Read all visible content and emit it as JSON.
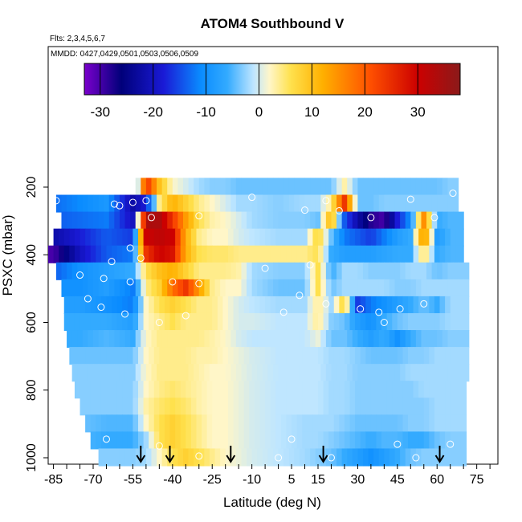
{
  "chart_data": {
    "type": "heatmap",
    "title": "ATOM4 Southbound V",
    "flights_note": "Flts: 2,3,4,5,6,7",
    "dates_note": "MMDD: 0427,0429,0501,0503,0506,0509",
    "xlabel": "Latitude (deg N)",
    "ylabel": "PSXC (mbar)",
    "xlim": [
      -87,
      83
    ],
    "ylim": [
      1000,
      0
    ],
    "x_ticks": [
      "-85",
      "-70",
      "-55",
      "-40",
      "-25",
      "-10",
      "5",
      "15",
      "30",
      "45",
      "60",
      "75"
    ],
    "x_tick_values": [
      -85,
      -70,
      -55,
      -40,
      -25,
      -10,
      5,
      15,
      30,
      45,
      60,
      75
    ],
    "y_ticks": [
      "200",
      "400",
      "600",
      "800",
      "1000"
    ],
    "y_tick_values": [
      200,
      400,
      600,
      800,
      1000
    ],
    "colorbar": {
      "ticks": [
        "-30",
        "-20",
        "-10",
        "0",
        "10",
        "20",
        "30"
      ],
      "tick_values": [
        -30,
        -20,
        -10,
        0,
        10,
        20,
        30
      ],
      "range": [
        -33,
        38
      ],
      "colors": [
        "#7a00cc",
        "#00007a",
        "#1a1ad6",
        "#0a8cff",
        "#33aaff",
        "#bfe6ff",
        "#fff6c8",
        "#ffe14d",
        "#ffb000",
        "#ff5000",
        "#cc0000",
        "#8b1a1a"
      ],
      "color_stops": [
        -33,
        -26,
        -18,
        -11,
        -6,
        -1,
        2,
        6,
        12,
        21,
        30,
        38
      ]
    },
    "arrow_latitudes": [
      -52,
      -41,
      -18,
      17,
      61
    ],
    "levels": [
      200,
      250,
      300,
      350,
      400,
      450,
      500,
      550,
      600,
      650,
      700,
      750,
      800,
      850,
      900,
      950,
      1000
    ],
    "latitude_nodes": [
      -85,
      -75,
      -65,
      -55,
      -50,
      -45,
      -40,
      -35,
      -30,
      -25,
      -20,
      -15,
      -10,
      0,
      10,
      15,
      20,
      25,
      30,
      35,
      40,
      45,
      50,
      55,
      60,
      65,
      72
    ],
    "rows": [
      {
        "p": 200,
        "lat_min": -54,
        "lat_max": 68,
        "v": [
          null,
          null,
          null,
          -16,
          25,
          10,
          2,
          0,
          -2,
          -3,
          -3,
          -4,
          -4,
          -4,
          -4,
          -4,
          -4,
          3,
          -4,
          -4,
          -4,
          -4,
          -4,
          -4,
          -4,
          -3,
          -3
        ]
      },
      {
        "p": 250,
        "lat_min": -84,
        "lat_max": 68,
        "v": [
          -13,
          -11,
          -9,
          -22,
          -18,
          4,
          12,
          8,
          4,
          2,
          0,
          -2,
          -2,
          -3,
          -2,
          -2,
          4,
          24,
          -4,
          -4,
          -3,
          -3,
          -3,
          -3,
          -3,
          -3,
          -3
        ]
      },
      {
        "p": 300,
        "lat_min": -82,
        "lat_max": 70,
        "v": [
          -14,
          -13,
          -12,
          -20,
          34,
          34,
          24,
          14,
          6,
          3,
          2,
          0,
          -2,
          -3,
          -3,
          -4,
          12,
          -14,
          -22,
          -28,
          -30,
          -18,
          -10,
          15,
          -6,
          -5,
          -5
        ]
      },
      {
        "p": 350,
        "lat_min": -85,
        "lat_max": 70,
        "v": [
          -22,
          -18,
          -14,
          -16,
          30,
          32,
          30,
          12,
          4,
          2,
          2,
          0,
          -1,
          -2,
          -2,
          8,
          -4,
          -12,
          -14,
          -16,
          -12,
          -8,
          -6,
          16,
          -8,
          -5,
          -5
        ]
      },
      {
        "p": 400,
        "lat_min": -87,
        "lat_max": 70,
        "v": [
          -30,
          -20,
          -14,
          -12,
          24,
          30,
          28,
          12,
          6,
          5,
          5,
          4,
          4,
          4,
          4,
          6,
          -6,
          -8,
          -8,
          -8,
          -7,
          -6,
          -6,
          6,
          -6,
          -5,
          -5
        ]
      },
      {
        "p": 450,
        "lat_min": -84,
        "lat_max": 72,
        "v": [
          -14,
          -10,
          -8,
          -6,
          6,
          10,
          12,
          8,
          4,
          4,
          4,
          3,
          -2,
          -3,
          -3,
          6,
          -6,
          -2,
          -2,
          -3,
          -3,
          -3,
          -2,
          -2,
          -4,
          -3,
          -3
        ]
      },
      {
        "p": 500,
        "lat_min": -82,
        "lat_max": 72,
        "v": [
          -10,
          -10,
          -8,
          -12,
          4,
          8,
          18,
          24,
          14,
          4,
          2,
          2,
          -2,
          -4,
          -4,
          6,
          -4,
          -2,
          -2,
          -2,
          -2,
          -3,
          -3,
          -2,
          -2,
          -2,
          -2
        ]
      },
      {
        "p": 550,
        "lat_min": -81,
        "lat_max": 72,
        "v": [
          -8,
          -8,
          -10,
          -12,
          2,
          6,
          8,
          6,
          4,
          4,
          2,
          0,
          -1,
          -2,
          -2,
          4,
          -2,
          8,
          -16,
          -12,
          -10,
          -8,
          -6,
          -4,
          -6,
          -2,
          -2
        ]
      },
      {
        "p": 600,
        "lat_min": -81,
        "lat_max": 72,
        "v": [
          -6,
          -6,
          -6,
          -8,
          2,
          4,
          6,
          4,
          4,
          4,
          2,
          0,
          0,
          -1,
          -1,
          4,
          -3,
          -4,
          -8,
          -10,
          -6,
          -4,
          -3,
          -3,
          -3,
          -2,
          -2
        ]
      },
      {
        "p": 650,
        "lat_min": -80,
        "lat_max": 72,
        "v": [
          -6,
          -6,
          -5,
          -6,
          2,
          4,
          4,
          4,
          4,
          3,
          2,
          0,
          -1,
          -1,
          -1,
          1,
          -4,
          -4,
          -6,
          -8,
          -6,
          -10,
          -6,
          -4,
          -4,
          -3,
          -3
        ]
      },
      {
        "p": 700,
        "lat_min": -79,
        "lat_max": 72,
        "v": [
          -4,
          -4,
          -4,
          -4,
          2,
          4,
          4,
          4,
          3,
          3,
          2,
          1,
          0,
          -1,
          -1,
          -1,
          -2,
          -2,
          -3,
          -4,
          -4,
          -4,
          -3,
          -3,
          -2,
          -2,
          -2
        ]
      },
      {
        "p": 750,
        "lat_min": -78,
        "lat_max": 72,
        "v": [
          -3,
          -3,
          -3,
          -3,
          2,
          4,
          4,
          4,
          3,
          2,
          2,
          1,
          0,
          -1,
          -1,
          -1,
          -2,
          -2,
          -3,
          -3,
          -3,
          -3,
          -2,
          -2,
          -2,
          -2,
          -2
        ]
      },
      {
        "p": 800,
        "lat_min": -77,
        "lat_max": 71,
        "v": [
          -3,
          -3,
          -3,
          -3,
          2,
          4,
          5,
          4,
          3,
          2,
          2,
          1,
          0,
          -1,
          -1,
          -1,
          -2,
          -2,
          -3,
          -3,
          -3,
          -3,
          -3,
          -2,
          -2,
          -2,
          -2
        ]
      },
      {
        "p": 850,
        "lat_min": -75,
        "lat_max": 71,
        "v": [
          -3,
          -3,
          -3,
          -3,
          3,
          5,
          6,
          5,
          3,
          2,
          2,
          1,
          0,
          -1,
          -1,
          -1,
          -2,
          -2,
          -3,
          -3,
          -3,
          -3,
          -3,
          -3,
          -2,
          -2,
          -2
        ]
      },
      {
        "p": 900,
        "lat_min": -73,
        "lat_max": 71,
        "v": [
          -4,
          -4,
          -5,
          -5,
          2,
          6,
          8,
          6,
          4,
          2,
          2,
          1,
          0,
          -1,
          -2,
          -2,
          -2,
          -3,
          -4,
          -4,
          -4,
          -4,
          -3,
          -3,
          -2,
          -2,
          -2
        ]
      },
      {
        "p": 950,
        "lat_min": -71,
        "lat_max": 71,
        "v": [
          -5,
          -5,
          -6,
          -6,
          -2,
          6,
          8,
          6,
          4,
          2,
          2,
          1,
          0,
          -1,
          -2,
          -2,
          -3,
          -4,
          -5,
          -6,
          -5,
          -5,
          -6,
          -6,
          -4,
          -3,
          -3
        ]
      },
      {
        "p": 1000,
        "lat_min": -68,
        "lat_max": 71,
        "v": [
          -3,
          -3,
          -3,
          -3,
          -2,
          2,
          6,
          8,
          6,
          4,
          2,
          1,
          0,
          -1,
          -2,
          -3,
          -4,
          -6,
          -8,
          -10,
          -8,
          -6,
          -4,
          -3,
          -3,
          -3,
          -3
        ]
      }
    ],
    "sample_points": [
      {
        "lat": -84,
        "p": 240
      },
      {
        "lat": -62,
        "p": 250
      },
      {
        "lat": -55,
        "p": 245
      },
      {
        "lat": -50,
        "p": 240
      },
      {
        "lat": -10,
        "p": 230
      },
      {
        "lat": 18,
        "p": 240
      },
      {
        "lat": 50,
        "p": 236
      },
      {
        "lat": 66,
        "p": 218
      },
      {
        "lat": -60,
        "p": 255
      },
      {
        "lat": 10,
        "p": 268
      },
      {
        "lat": 23,
        "p": 270
      },
      {
        "lat": 35,
        "p": 290
      },
      {
        "lat": -48,
        "p": 290
      },
      {
        "lat": -30,
        "p": 285
      },
      {
        "lat": 59,
        "p": 290
      },
      {
        "lat": -56,
        "p": 380
      },
      {
        "lat": -63,
        "p": 420
      },
      {
        "lat": -52,
        "p": 410
      },
      {
        "lat": -5,
        "p": 440
      },
      {
        "lat": 12,
        "p": 430
      },
      {
        "lat": -75,
        "p": 460
      },
      {
        "lat": -66,
        "p": 470
      },
      {
        "lat": -56,
        "p": 480
      },
      {
        "lat": -40,
        "p": 480
      },
      {
        "lat": -30,
        "p": 485
      },
      {
        "lat": -72,
        "p": 530
      },
      {
        "lat": 8,
        "p": 520
      },
      {
        "lat": 18,
        "p": 545
      },
      {
        "lat": -67,
        "p": 555
      },
      {
        "lat": -58,
        "p": 575
      },
      {
        "lat": -35,
        "p": 580
      },
      {
        "lat": 2,
        "p": 570
      },
      {
        "lat": 31,
        "p": 560
      },
      {
        "lat": 38,
        "p": 570
      },
      {
        "lat": 46,
        "p": 560
      },
      {
        "lat": 55,
        "p": 545
      },
      {
        "lat": -45,
        "p": 600
      },
      {
        "lat": 40,
        "p": 600
      },
      {
        "lat": 75,
        "p": 680
      },
      {
        "lat": 73,
        "p": 820
      },
      {
        "lat": -65,
        "p": 945
      },
      {
        "lat": -45,
        "p": 965
      },
      {
        "lat": 5,
        "p": 945
      },
      {
        "lat": 45,
        "p": 960
      },
      {
        "lat": 65,
        "p": 960
      },
      {
        "lat": -30,
        "p": 995
      },
      {
        "lat": 0,
        "p": 1000
      },
      {
        "lat": 20,
        "p": 1000
      },
      {
        "lat": 52,
        "p": 1000
      }
    ]
  }
}
